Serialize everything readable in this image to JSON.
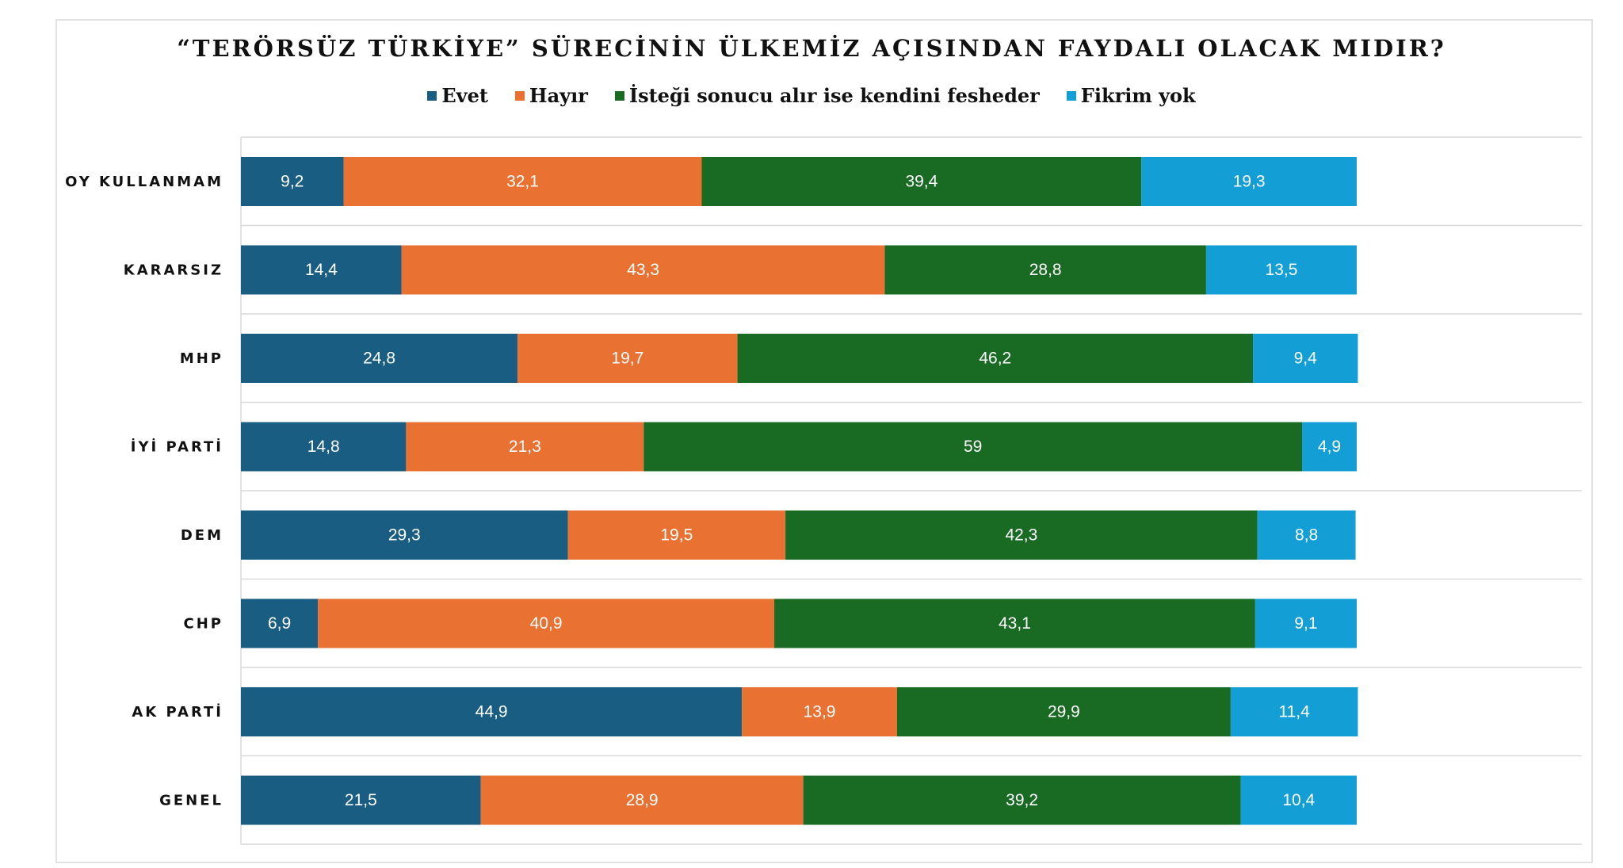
{
  "colors": {
    "evet": "#195e82",
    "hayir": "#e97132",
    "isteg": "#196b24",
    "fikrim": "#139fd6",
    "grid": "#d9d9d9"
  },
  "chart_data": {
    "type": "bar",
    "orientation": "horizontal",
    "stacked": true,
    "title": "“TERÖRSÜZ TÜRKİYE” SÜRECİNİN ÜLKEMİZ AÇISINDAN FAYDALI OLACAK MIDIR?",
    "xlabel": "",
    "ylabel": "",
    "xlim": [
      0,
      120
    ],
    "legend_position": "top",
    "categories": [
      "OY KULLANMAM",
      "KARARSIZ",
      "MHP",
      "İYİ PARTİ",
      "DEM",
      "CHP",
      "AK PARTİ",
      "GENEL"
    ],
    "series": [
      {
        "name": "Evet",
        "color": "#195e82",
        "values": [
          9.2,
          14.4,
          24.8,
          14.8,
          29.3,
          6.9,
          44.9,
          21.5
        ],
        "labels": [
          "9,2",
          "14,4",
          "24,8",
          "14,8",
          "29,3",
          "6,9",
          "44,9",
          "21,5"
        ]
      },
      {
        "name": "Hayır",
        "color": "#e97132",
        "values": [
          32.1,
          43.3,
          19.7,
          21.3,
          19.5,
          40.9,
          13.9,
          28.9
        ],
        "labels": [
          "32,1",
          "43,3",
          "19,7",
          "21,3",
          "19,5",
          "40,9",
          "13,9",
          "28,9"
        ]
      },
      {
        "name": "İsteği sonucu alır ise kendini fesheder",
        "color": "#196b24",
        "values": [
          39.4,
          28.8,
          46.2,
          59,
          42.3,
          43.1,
          29.9,
          39.2
        ],
        "labels": [
          "39,4",
          "28,8",
          "46,2",
          "59",
          "42,3",
          "43,1",
          "29,9",
          "39,2"
        ]
      },
      {
        "name": "Fikrim yok",
        "color": "#139fd6",
        "values": [
          19.3,
          13.5,
          9.4,
          4.9,
          8.8,
          9.1,
          11.4,
          10.4
        ],
        "labels": [
          "19,3",
          "13,5",
          "9,4",
          "4,9",
          "8,8",
          "9,1",
          "11,4",
          "10,4"
        ]
      }
    ]
  }
}
